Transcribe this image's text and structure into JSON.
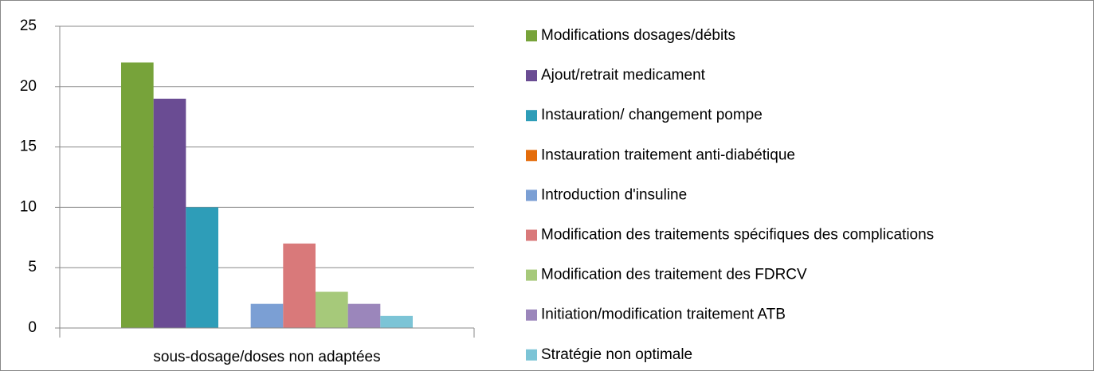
{
  "chart_data": {
    "type": "bar",
    "categories": [
      "sous-dosage/doses non adaptées"
    ],
    "series": [
      {
        "name": "Modifications dosages/débits",
        "color": "#77a33a",
        "values": [
          22
        ]
      },
      {
        "name": "Ajout/retrait  medicament",
        "color": "#6a4c93",
        "values": [
          19
        ]
      },
      {
        "name": "Instauration/ changement pompe",
        "color": "#2e9db8",
        "values": [
          10
        ]
      },
      {
        "name": "Instauration traitement anti-diabétique",
        "color": "#e46c0a",
        "values": [
          0
        ]
      },
      {
        "name": "Introduction d'insuline",
        "color": "#7b9fd4",
        "values": [
          2
        ]
      },
      {
        "name": "Modification des traitements spécifiques des  complications",
        "color": "#d9797a",
        "values": [
          7
        ]
      },
      {
        "name": "Modification des traitement des FDRCV",
        "color": "#a6c97a",
        "values": [
          3
        ]
      },
      {
        "name": "Initiation/modification  traitement ATB",
        "color": "#9b86bb",
        "values": [
          2
        ]
      },
      {
        "name": "Stratégie  non optimale",
        "color": "#7cc4d6",
        "values": [
          1
        ]
      }
    ],
    "ylim": [
      0,
      25
    ],
    "yticks": [
      0,
      5,
      10,
      15,
      20,
      25
    ],
    "grid": true,
    "legend": "right"
  }
}
